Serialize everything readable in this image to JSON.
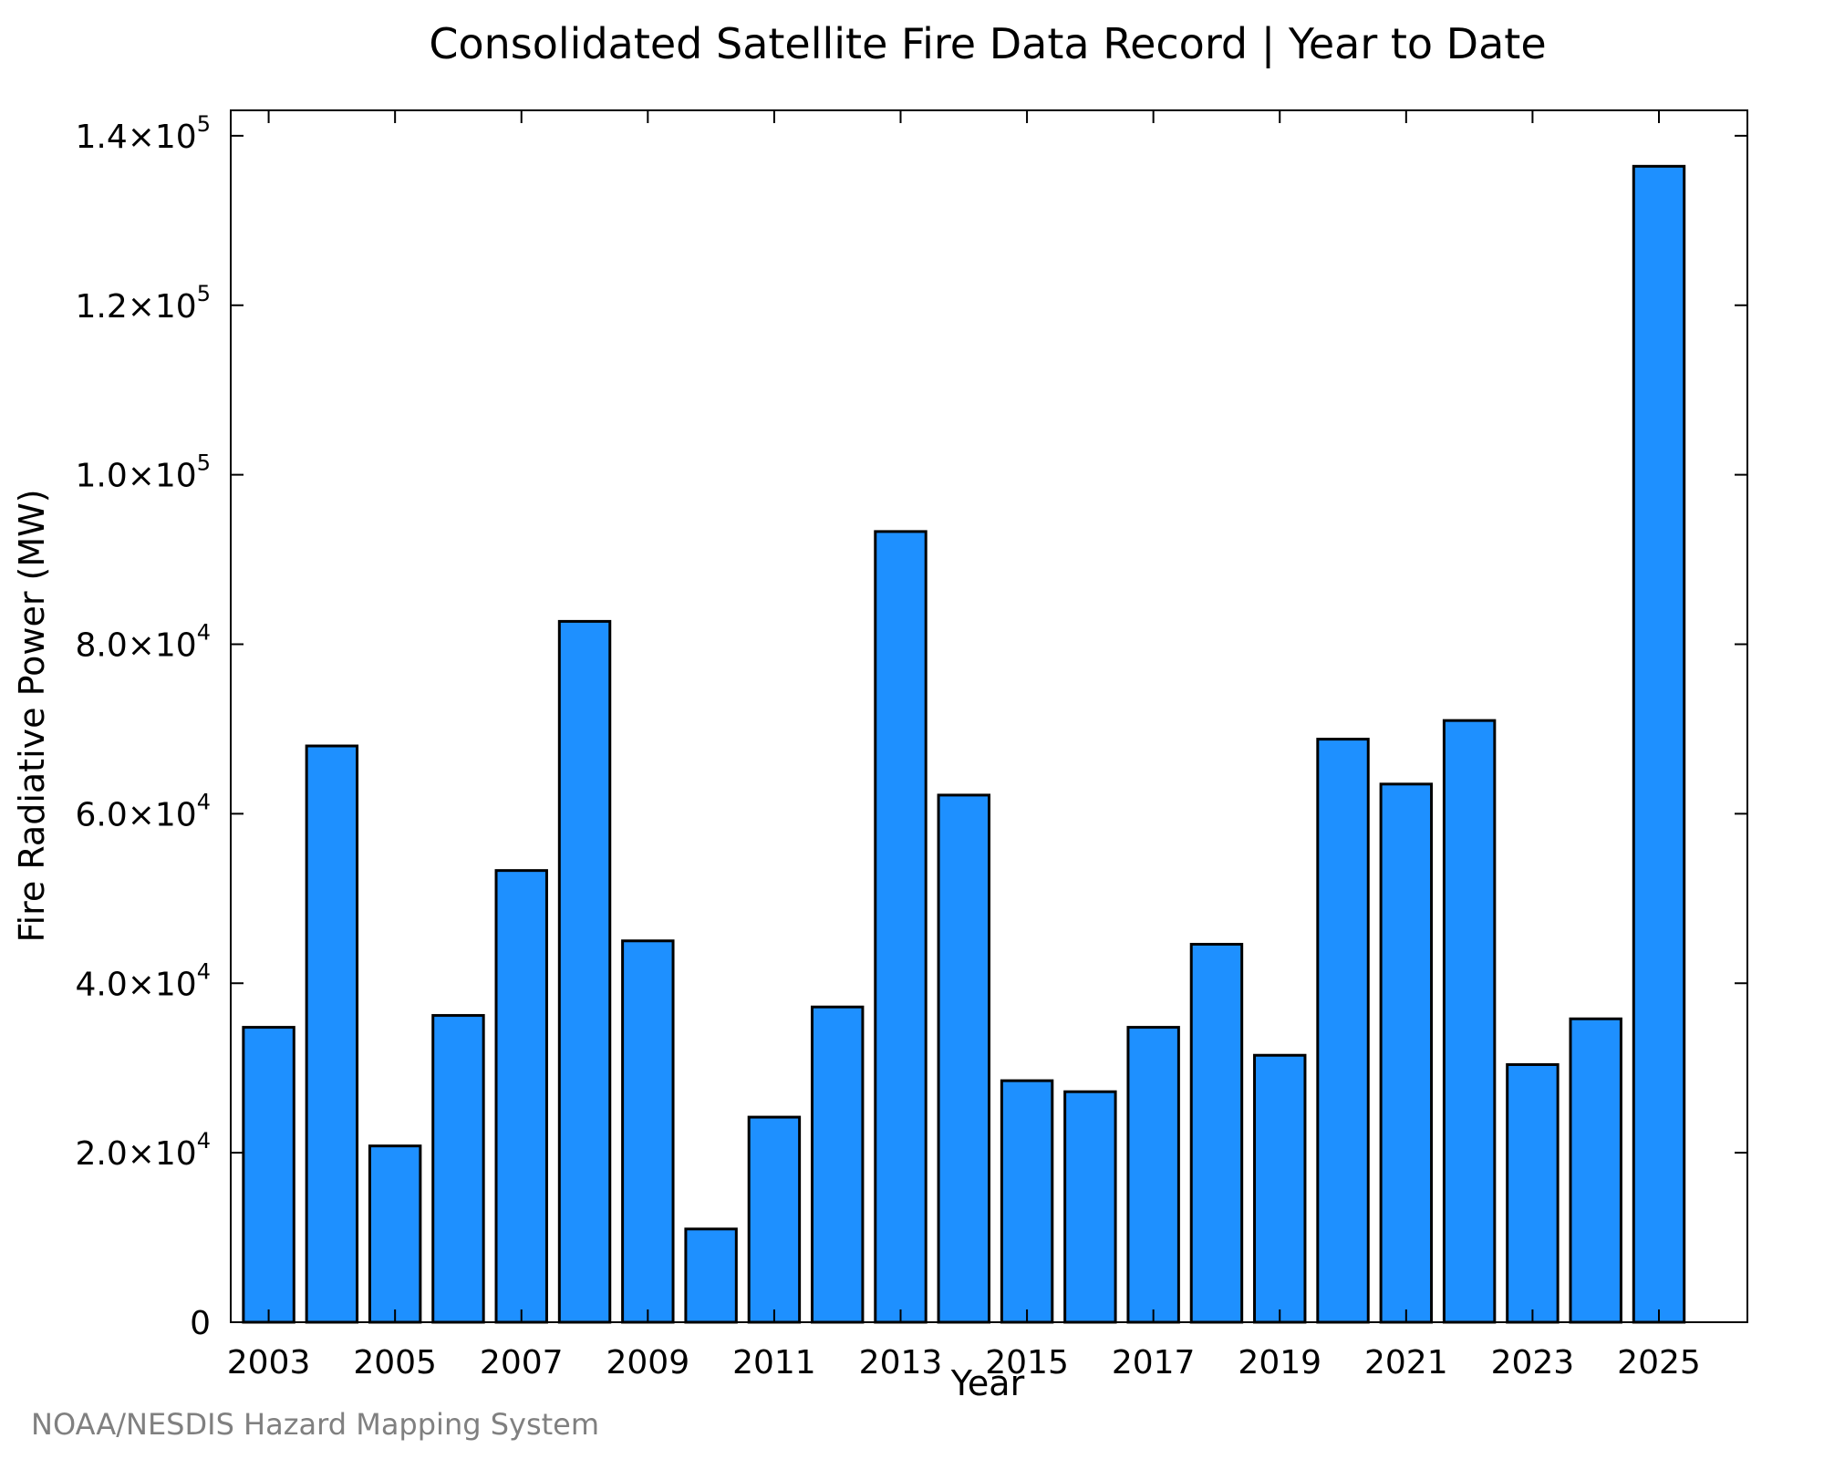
{
  "chart_data": {
    "type": "bar",
    "title": "Consolidated Satellite Fire Data Record | Year to Date",
    "xlabel": "Year",
    "ylabel": "Fire Radiative Power (MW)",
    "categories": [
      2003,
      2004,
      2005,
      2006,
      2007,
      2008,
      2009,
      2010,
      2011,
      2012,
      2013,
      2014,
      2015,
      2016,
      2017,
      2018,
      2019,
      2020,
      2021,
      2022,
      2023,
      2024,
      2025
    ],
    "values": [
      34800,
      68000,
      20800,
      36200,
      53300,
      82700,
      45000,
      11000,
      24200,
      37200,
      93300,
      62200,
      28500,
      27200,
      34800,
      44600,
      31500,
      68800,
      63500,
      71000,
      30400,
      35800,
      136400
    ],
    "x_tick_labels": [
      "2003",
      "2005",
      "2007",
      "2009",
      "2011",
      "2013",
      "2015",
      "2017",
      "2019",
      "2021",
      "2023",
      "2025"
    ],
    "y_ticks": [
      {
        "value": 0,
        "mantissa": "0",
        "exp": ""
      },
      {
        "value": 20000,
        "mantissa": "2.0×10",
        "exp": "4"
      },
      {
        "value": 40000,
        "mantissa": "4.0×10",
        "exp": "4"
      },
      {
        "value": 60000,
        "mantissa": "6.0×10",
        "exp": "4"
      },
      {
        "value": 80000,
        "mantissa": "8.0×10",
        "exp": "4"
      },
      {
        "value": 100000,
        "mantissa": "1.0×10",
        "exp": "5"
      },
      {
        "value": 120000,
        "mantissa": "1.2×10",
        "exp": "5"
      },
      {
        "value": 140000,
        "mantissa": "1.4×10",
        "exp": "5"
      }
    ],
    "ylim": [
      0,
      143000
    ],
    "xlim": [
      2002.4,
      2026.4
    ],
    "bar_color": "#1E90FF",
    "grid": false,
    "legend": "none"
  },
  "credit": "NOAA/NESDIS Hazard Mapping System"
}
